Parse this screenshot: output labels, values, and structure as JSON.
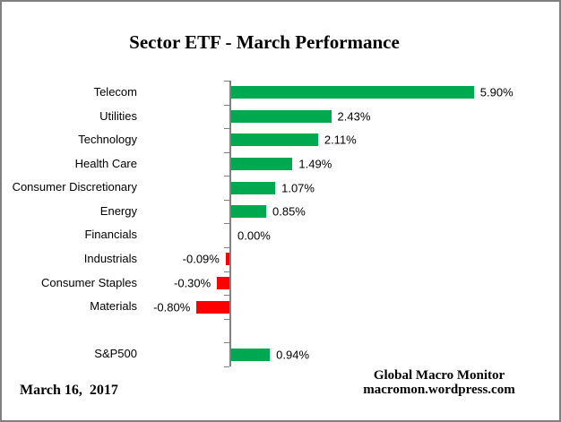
{
  "title": "Sector ETF - March Performance",
  "footer": {
    "date": "March 16,  2017",
    "attribution_line1": "Global Macro Monitor",
    "attribution_line2": "macromon.wordpress.com"
  },
  "colors": {
    "positive_bar": "#00A850",
    "negative_bar": "#FF0000",
    "axis": "#808080",
    "border": "#808080",
    "text": "#000000"
  },
  "chart_data": {
    "type": "bar",
    "orientation": "horizontal",
    "title": "Sector ETF - March Performance",
    "categories": [
      "Telecom",
      "Utilities",
      "Technology",
      "Health Care",
      "Consumer Discretionary",
      "Energy",
      "Financials",
      "Industrials",
      "Consumer Staples",
      "Materials",
      "",
      "S&P500"
    ],
    "values": [
      5.9,
      2.43,
      2.11,
      1.49,
      1.07,
      0.85,
      0.0,
      -0.09,
      -0.3,
      -0.8,
      null,
      0.94
    ],
    "data_labels": [
      "5.90%",
      "2.43%",
      "2.11%",
      "1.49%",
      "1.07%",
      "0.85%",
      "0.00%",
      "-0.09%",
      "-0.30%",
      "-0.80%",
      "",
      "0.94%"
    ],
    "xlabel": "",
    "ylabel": "",
    "xlim_estimate": [
      -1.0,
      6.5
    ],
    "grid": false,
    "legend": false,
    "axis_tick_marks": "outside, at category boundaries",
    "value_unit": "%"
  }
}
